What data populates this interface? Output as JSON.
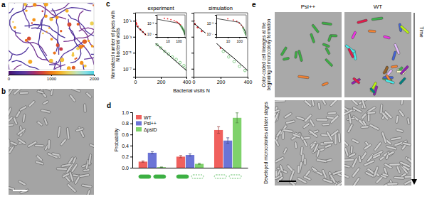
{
  "panel_labels": [
    "a",
    "b",
    "c",
    "d",
    "e"
  ],
  "panel_a": {
    "colorbar_range": [
      0,
      2000
    ],
    "colorbar_ticks": [
      0,
      1000,
      2000
    ]
  },
  "chart_data": [
    {
      "type": "scatter",
      "title": "experiment",
      "xlabel": "Bacterial visits N",
      "ylabel": "Normalized number of pixels with N bacterial visits",
      "log": "y",
      "xlim": [
        0,
        400
      ],
      "xticks": [
        0,
        200,
        400
      ],
      "ylim": [
        1e-08,
        1
      ],
      "yticks": [
        {
          "value": 0.1,
          "label": "10⁻¹"
        },
        {
          "value": 0.001,
          "label": "10⁻³"
        },
        {
          "value": 1e-05,
          "label": "10⁻⁵"
        },
        {
          "value": 1e-07,
          "label": "10⁻⁷"
        }
      ],
      "series": [
        {
          "type": "scatter",
          "color": "#e8262b",
          "marker": "circle",
          "x": [
            1,
            5,
            10,
            20,
            40,
            60,
            80,
            100,
            120,
            150
          ],
          "values": [
            0.12,
            0.06,
            0.04,
            0.02,
            0.008,
            0.004,
            0.002,
            0.001,
            0.0006,
            0.00025
          ]
        },
        {
          "type": "scatter",
          "color": "#3cb043",
          "marker": "open_circle",
          "x": [
            170,
            200,
            230,
            260,
            290,
            320,
            350,
            380,
            400
          ],
          "values": [
            0.0001,
            4e-05,
            1.5e-05,
            7e-06,
            3e-06,
            1.5e-06,
            6e-07,
            2.5e-07,
            1e-07
          ]
        },
        {
          "type": "line",
          "color": "#000000",
          "line_style": "solid",
          "x": [
            1,
            100,
            200,
            300,
            400
          ],
          "values": [
            0.03,
            0.001,
            4e-05,
            1.5e-06,
            6e-08
          ]
        }
      ],
      "inset": {
        "log": true,
        "xlim": [
          1,
          400
        ],
        "xticks": [
          10,
          100
        ],
        "ylim": [
          1e-08,
          1
        ],
        "yticks": [
          {
            "value": 0.001,
            "label": "10⁻³"
          },
          {
            "value": 1e-07,
            "label": "10⁻⁷"
          }
        ]
      }
    },
    {
      "type": "scatter",
      "title": "simulation",
      "log": "y",
      "tick_labels": "x",
      "xlim": [
        0,
        400
      ],
      "xticks": [
        0,
        200,
        400
      ],
      "ylim": [
        1e-08,
        1
      ],
      "yticks": [
        0.1,
        0.001,
        1e-05,
        1e-07
      ],
      "series": [
        {
          "type": "scatter",
          "color": "#e8262b",
          "marker": "circle",
          "x": [
            1,
            10,
            30,
            60,
            100,
            150,
            200
          ],
          "values": [
            0.1,
            0.04,
            0.015,
            0.005,
            0.001,
            0.0002,
            4e-05
          ]
        },
        {
          "type": "scatter",
          "color": "#3cb043",
          "marker": "open_circle",
          "x": [
            220,
            260,
            300,
            340,
            380
          ],
          "values": [
            1.5e-05,
            3e-06,
            8e-07,
            2e-07,
            6e-08
          ]
        },
        {
          "type": "line",
          "color": "#000000",
          "line_style": "solid",
          "x": [
            1,
            100,
            200,
            300,
            400
          ],
          "values": [
            0.05,
            0.002,
            5e-05,
            2e-06,
            6e-08
          ]
        }
      ],
      "inset": {
        "log": true,
        "xlim": [
          1,
          400
        ],
        "xticks": [
          10,
          100
        ],
        "ylim": [
          1e-08,
          1
        ],
        "yticks": [
          {
            "value": 0.001,
            "label": "10⁻³"
          },
          {
            "value": 1e-07,
            "label": "10⁻⁷"
          }
        ]
      }
    },
    {
      "type": "bar",
      "ylabel": "Probability",
      "categories": [
        null,
        null,
        null
      ],
      "legend": "top-left",
      "ylim": [
        0,
        1
      ],
      "yticks": [
        {
          "value": 0,
          "label": "0.0"
        },
        0.2,
        0.4,
        0.6,
        0.8,
        {
          "value": 1,
          "label": "1.0"
        }
      ],
      "series": [
        {
          "name": "WT",
          "color": "#f0605d",
          "values": [
            0.11,
            0.2,
            0.68
          ],
          "errors": [
            0.012,
            0.02,
            0.06
          ]
        },
        {
          "name": "Psl++",
          "color": "#6b74d6",
          "values": [
            0.27,
            0.23,
            0.49
          ],
          "errors": [
            0.02,
            0.02,
            0.05
          ]
        },
        {
          "name": "ΔpslD",
          "color": "#7fd26b",
          "values": [
            0.01,
            0.07,
            0.9
          ],
          "errors": [
            0.004,
            0.01,
            0.09
          ]
        }
      ]
    }
  ],
  "panel_e": {
    "columns": [
      "Psl++",
      "WT"
    ],
    "rows": [
      "Color-coded cell lineages at the beginning of microcolony formation",
      "Developed microcolonies at later stages"
    ],
    "arrow_label": "Time"
  }
}
